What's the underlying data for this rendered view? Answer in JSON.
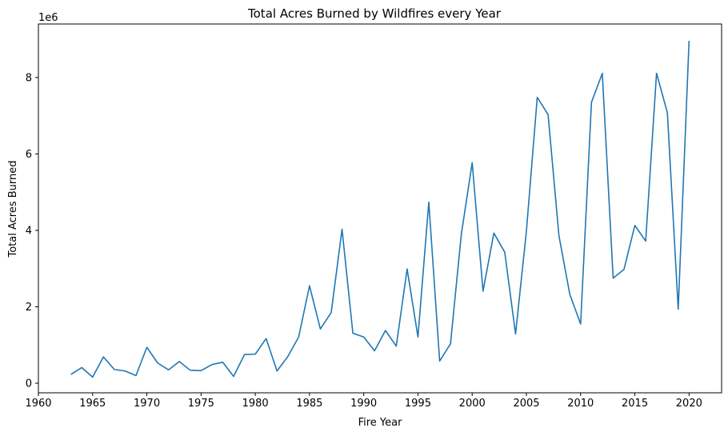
{
  "chart_data": {
    "type": "line",
    "title": "Total Acres Burned by Wildfires every Year",
    "xlabel": "Fire Year",
    "ylabel": "Total Acres Burned",
    "y_scale_label": "1e6",
    "xlim": [
      1960,
      2023
    ],
    "ylim": [
      -0.25,
      9.4
    ],
    "x_ticks": [
      1960,
      1965,
      1970,
      1975,
      1980,
      1985,
      1990,
      1995,
      2000,
      2005,
      2010,
      2015,
      2020
    ],
    "y_ticks": [
      0,
      2,
      4,
      6,
      8
    ],
    "line_color": "#1f77b4",
    "grid": false,
    "series": [
      {
        "x": [
          1963,
          1964,
          1965,
          1966,
          1967,
          1968,
          1969,
          1970,
          1971,
          1972,
          1973,
          1974,
          1975,
          1976,
          1977,
          1978,
          1979,
          1980,
          1981,
          1982,
          1983,
          1984,
          1985,
          1986,
          1987,
          1988,
          1989,
          1990,
          1991,
          1992,
          1993,
          1994,
          1995,
          1996,
          1997,
          1998,
          1999,
          2000,
          2001,
          2002,
          2003,
          2004,
          2005,
          2006,
          2007,
          2008,
          2009,
          2010,
          2011,
          2012,
          2013,
          2014,
          2015,
          2016,
          2017,
          2018,
          2019,
          2020
        ],
        "values": [
          0.23,
          0.41,
          0.16,
          0.69,
          0.36,
          0.32,
          0.2,
          0.94,
          0.53,
          0.35,
          0.57,
          0.34,
          0.33,
          0.49,
          0.55,
          0.18,
          0.75,
          0.76,
          1.17,
          0.32,
          0.7,
          1.21,
          2.55,
          1.42,
          1.85,
          4.03,
          1.31,
          1.21,
          0.85,
          1.38,
          0.97,
          2.99,
          1.21,
          4.74,
          0.58,
          1.03,
          3.9,
          5.77,
          2.41,
          3.93,
          3.43,
          1.29,
          3.98,
          7.48,
          7.03,
          3.86,
          2.33,
          1.55,
          7.35,
          8.11,
          2.75,
          2.98,
          4.13,
          3.72,
          8.11,
          7.08,
          1.94,
          8.96
        ]
      }
    ]
  }
}
